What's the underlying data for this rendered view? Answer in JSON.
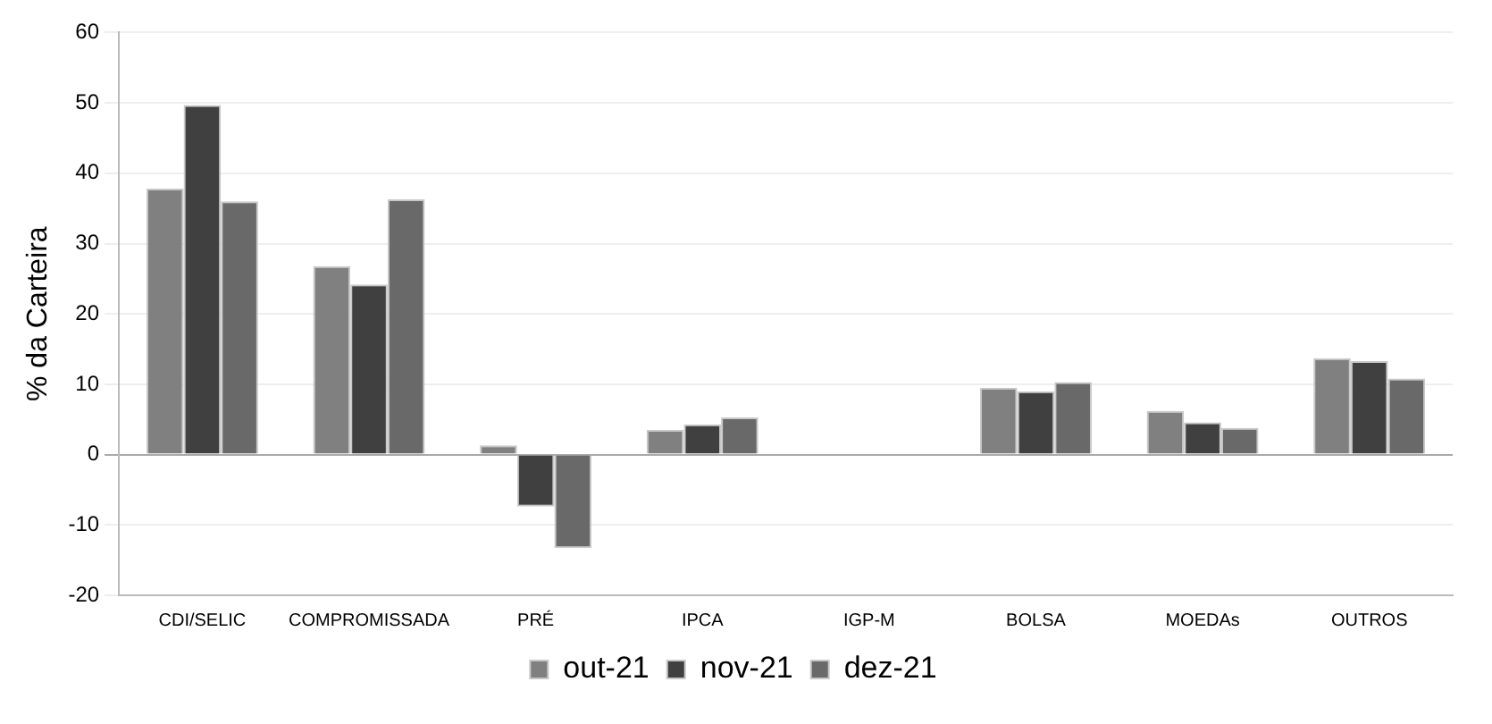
{
  "chart_data": {
    "type": "bar",
    "ylabel": "% da Carteira",
    "categories": [
      "CDI/SELIC",
      "COMPROMISSADA",
      "PRÉ",
      "IPCA",
      "IGP-M",
      "BOLSA",
      "MOEDAs",
      "OUTROS"
    ],
    "series": [
      {
        "name": "out-21",
        "color": "#808080",
        "values": [
          37.8,
          26.8,
          1.3,
          3.5,
          null,
          9.5,
          6.2,
          13.7
        ]
      },
      {
        "name": "nov-21",
        "color": "#404040",
        "values": [
          49.7,
          24.2,
          -7.4,
          4.3,
          null,
          9,
          4.6,
          13.3
        ]
      },
      {
        "name": "dez-21",
        "color": "#696969",
        "values": [
          36,
          36.3,
          -13.3,
          5.3,
          null,
          10.3,
          3.8,
          10.8
        ]
      }
    ],
    "ylim": [
      -20,
      60
    ],
    "yticks": [
      -20,
      -10,
      0,
      10,
      20,
      30,
      40,
      50,
      60
    ],
    "grid": "y",
    "legend": "bottom"
  }
}
